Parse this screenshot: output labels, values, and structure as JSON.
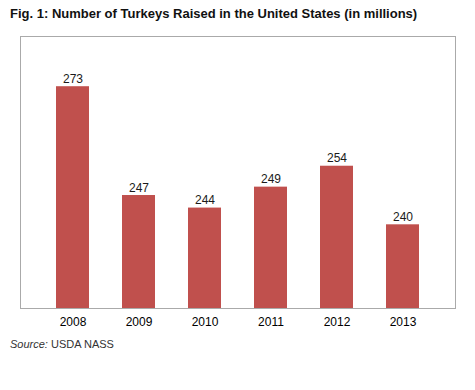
{
  "chart_data": {
    "type": "bar",
    "title": "Fig. 1: Number of Turkeys Raised in the United States (in millions)",
    "categories": [
      "2008",
      "2009",
      "2010",
      "2011",
      "2012",
      "2013"
    ],
    "values": [
      273,
      247,
      244,
      249,
      254,
      240
    ],
    "color": "#c0504d",
    "ylim": [
      220,
      285
    ],
    "data_labels": true,
    "tick_labels": "x",
    "grid": false,
    "caption": "Source: USDA NASS"
  }
}
